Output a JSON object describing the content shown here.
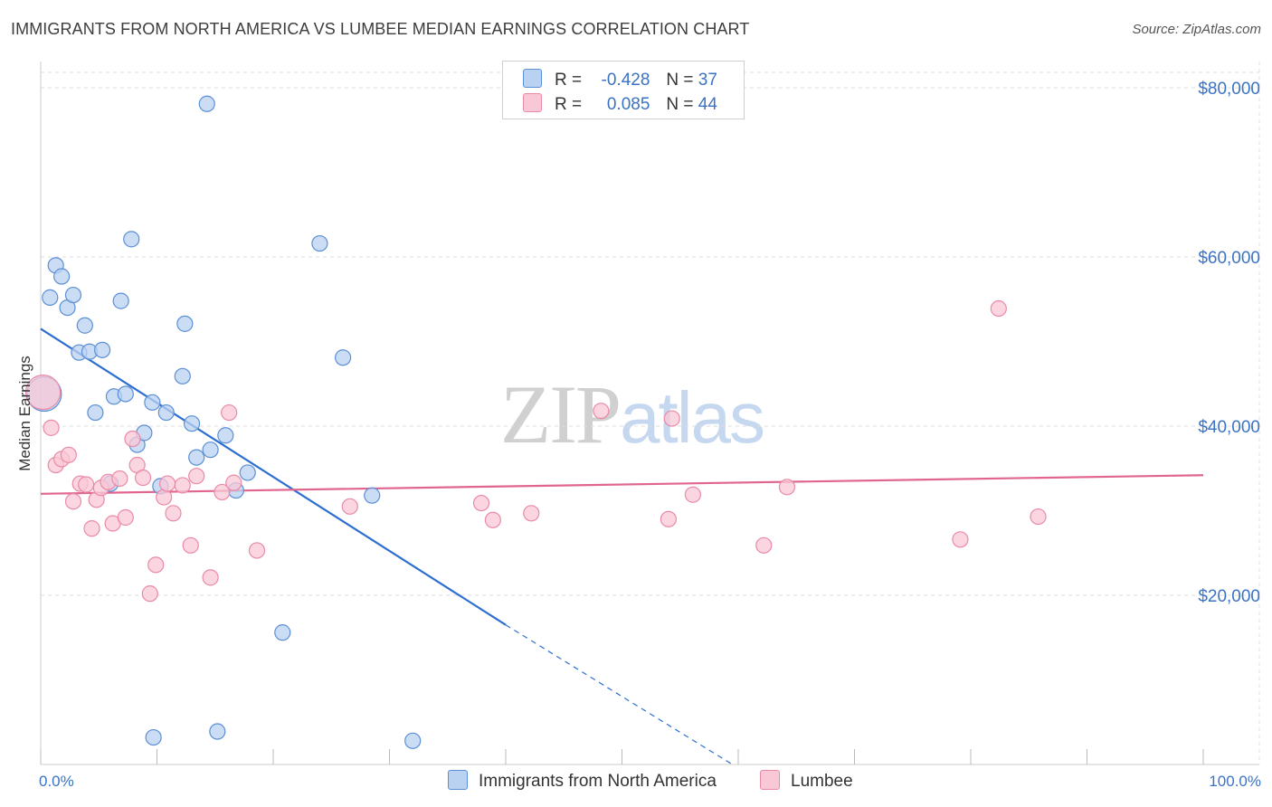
{
  "header": {
    "title": "IMMIGRANTS FROM NORTH AMERICA VS LUMBEE MEDIAN EARNINGS CORRELATION CHART",
    "source": "Source: ZipAtlas.com"
  },
  "legend": {
    "rows": [
      {
        "r_label": "R =",
        "r_value": "-0.428",
        "n_label": "N =",
        "n_value": "37"
      },
      {
        "r_label": "R =",
        "r_value": "0.085",
        "n_label": "N =",
        "n_value": "44"
      }
    ]
  },
  "watermark": {
    "zip": "ZIP",
    "atlas": "atlas"
  },
  "colors": {
    "blue_fill": "#b9d2f2",
    "blue_stroke": "#5b8fd6",
    "blue_line": "#2d6fd0",
    "pink_fill": "#f9c8d6",
    "pink_stroke": "#e98aa8",
    "pink_line": "#e06590",
    "grid": "#dddddd",
    "tick_text": "#3b73c4"
  },
  "chart_data": {
    "type": "scatter",
    "title": "IMMIGRANTS FROM NORTH AMERICA VS LUMBEE MEDIAN EARNINGS CORRELATION CHART",
    "xlabel": "",
    "ylabel": "Median Earnings",
    "xlim": [
      0,
      100
    ],
    "ylim": [
      0,
      80000
    ],
    "x_tick_labels": [
      "0.0%",
      "100.0%"
    ],
    "y_ticks": [
      20000,
      40000,
      60000,
      80000
    ],
    "y_tick_labels": [
      "$20,000",
      "$40,000",
      "$60,000",
      "$80,000"
    ],
    "series": [
      {
        "name": "Immigrants from North America",
        "color": "blue",
        "r": -0.428,
        "n": 37,
        "trend": {
          "x0": 0,
          "y0": 51500,
          "x1": 40,
          "y1": 16500,
          "dash_to_x": 59.5,
          "dash_to_y": 0
        },
        "points": [
          {
            "x": 0.3,
            "y": 43800,
            "big": true
          },
          {
            "x": 0.8,
            "y": 55200
          },
          {
            "x": 1.3,
            "y": 59000
          },
          {
            "x": 1.8,
            "y": 57700
          },
          {
            "x": 2.3,
            "y": 54000
          },
          {
            "x": 2.8,
            "y": 55500
          },
          {
            "x": 3.3,
            "y": 48700
          },
          {
            "x": 3.8,
            "y": 51900
          },
          {
            "x": 4.2,
            "y": 48800
          },
          {
            "x": 4.7,
            "y": 41600
          },
          {
            "x": 5.3,
            "y": 49000
          },
          {
            "x": 6.0,
            "y": 33200
          },
          {
            "x": 6.3,
            "y": 43500
          },
          {
            "x": 6.9,
            "y": 54800
          },
          {
            "x": 7.3,
            "y": 43800
          },
          {
            "x": 7.8,
            "y": 62100
          },
          {
            "x": 8.3,
            "y": 37800
          },
          {
            "x": 8.9,
            "y": 39200
          },
          {
            "x": 9.6,
            "y": 42800
          },
          {
            "x": 9.7,
            "y": 3200
          },
          {
            "x": 10.3,
            "y": 32900
          },
          {
            "x": 10.8,
            "y": 41600
          },
          {
            "x": 12.2,
            "y": 45900
          },
          {
            "x": 12.4,
            "y": 52100
          },
          {
            "x": 13.0,
            "y": 40300
          },
          {
            "x": 13.4,
            "y": 36300
          },
          {
            "x": 14.3,
            "y": 78100
          },
          {
            "x": 14.6,
            "y": 37200
          },
          {
            "x": 15.2,
            "y": 3900
          },
          {
            "x": 15.9,
            "y": 38900
          },
          {
            "x": 16.8,
            "y": 32400
          },
          {
            "x": 17.8,
            "y": 34500
          },
          {
            "x": 20.8,
            "y": 15600
          },
          {
            "x": 24.0,
            "y": 61600
          },
          {
            "x": 26.0,
            "y": 48100
          },
          {
            "x": 28.5,
            "y": 31800
          },
          {
            "x": 32.0,
            "y": 2800
          }
        ]
      },
      {
        "name": "Lumbee",
        "color": "pink",
        "r": 0.085,
        "n": 44,
        "trend": {
          "x0": 0,
          "y0": 32000,
          "x1": 100,
          "y1": 34200
        },
        "points": [
          {
            "x": 0.2,
            "y": 44000,
            "big": true
          },
          {
            "x": 0.9,
            "y": 39800
          },
          {
            "x": 1.3,
            "y": 35400
          },
          {
            "x": 1.8,
            "y": 36100
          },
          {
            "x": 2.4,
            "y": 36600
          },
          {
            "x": 2.8,
            "y": 31100
          },
          {
            "x": 3.4,
            "y": 33200
          },
          {
            "x": 3.9,
            "y": 33100
          },
          {
            "x": 4.4,
            "y": 27900
          },
          {
            "x": 4.8,
            "y": 31300
          },
          {
            "x": 5.2,
            "y": 32700
          },
          {
            "x": 5.8,
            "y": 33400
          },
          {
            "x": 6.2,
            "y": 28500
          },
          {
            "x": 6.8,
            "y": 33800
          },
          {
            "x": 7.3,
            "y": 29200
          },
          {
            "x": 7.9,
            "y": 38500
          },
          {
            "x": 8.3,
            "y": 35400
          },
          {
            "x": 8.8,
            "y": 33900
          },
          {
            "x": 9.4,
            "y": 20200
          },
          {
            "x": 9.9,
            "y": 23600
          },
          {
            "x": 10.6,
            "y": 31600
          },
          {
            "x": 10.9,
            "y": 33200
          },
          {
            "x": 11.4,
            "y": 29700
          },
          {
            "x": 12.2,
            "y": 33000
          },
          {
            "x": 12.9,
            "y": 25900
          },
          {
            "x": 13.4,
            "y": 34100
          },
          {
            "x": 14.6,
            "y": 22100
          },
          {
            "x": 15.6,
            "y": 32200
          },
          {
            "x": 16.2,
            "y": 41600
          },
          {
            "x": 16.6,
            "y": 33300
          },
          {
            "x": 18.6,
            "y": 25300
          },
          {
            "x": 26.6,
            "y": 30500
          },
          {
            "x": 37.9,
            "y": 30900
          },
          {
            "x": 38.9,
            "y": 28900
          },
          {
            "x": 42.2,
            "y": 29700
          },
          {
            "x": 48.2,
            "y": 41800
          },
          {
            "x": 54.0,
            "y": 29000
          },
          {
            "x": 54.3,
            "y": 40900
          },
          {
            "x": 56.1,
            "y": 31900
          },
          {
            "x": 62.2,
            "y": 25900
          },
          {
            "x": 64.2,
            "y": 32800
          },
          {
            "x": 79.1,
            "y": 26600
          },
          {
            "x": 82.4,
            "y": 53900
          },
          {
            "x": 85.8,
            "y": 29300
          }
        ]
      }
    ]
  }
}
